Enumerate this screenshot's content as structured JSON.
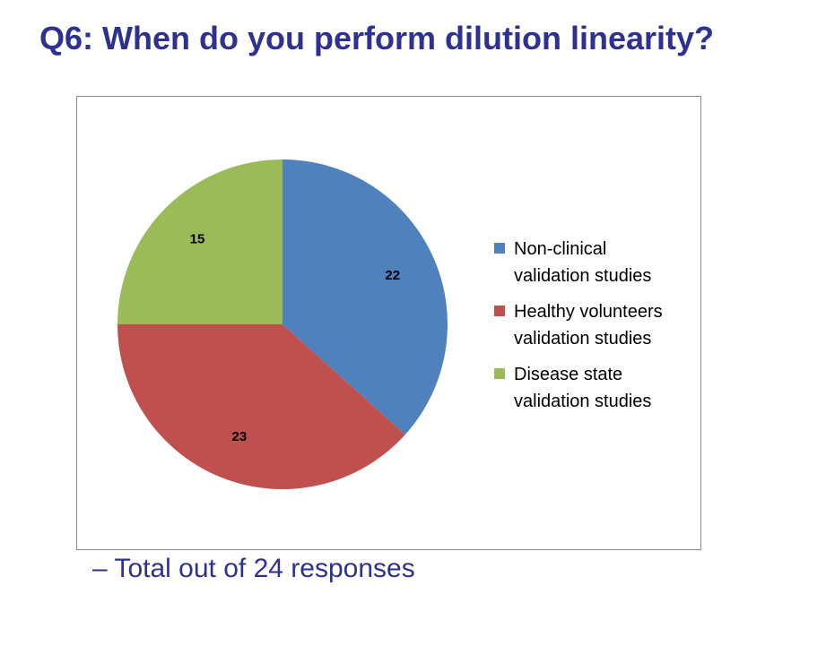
{
  "slide": {
    "title": "Q6: When do you perform dilution linearity?",
    "footnote": "– Total out of 24 responses"
  },
  "chart_data": {
    "type": "pie",
    "title": "",
    "categories": [
      "Non-clinical validation studies",
      "Healthy volunteers validation studies",
      "Disease state validation studies"
    ],
    "values": [
      22,
      23,
      15
    ],
    "data_labels": [
      "22",
      "23",
      "15"
    ],
    "colors": [
      "#4f81bd",
      "#c0504d",
      "#9bbb59"
    ],
    "start_angle_deg": 0,
    "direction": "clockwise",
    "legend": {
      "position": "right",
      "entries": [
        {
          "line1": "Non-clinical",
          "line2": "validation studies",
          "color": "#4f81bd"
        },
        {
          "line1": "Healthy volunteers",
          "line2": "validation studies",
          "color": "#c0504d"
        },
        {
          "line1": "Disease state",
          "line2": "validation studies",
          "color": "#9bbb59"
        }
      ]
    }
  }
}
